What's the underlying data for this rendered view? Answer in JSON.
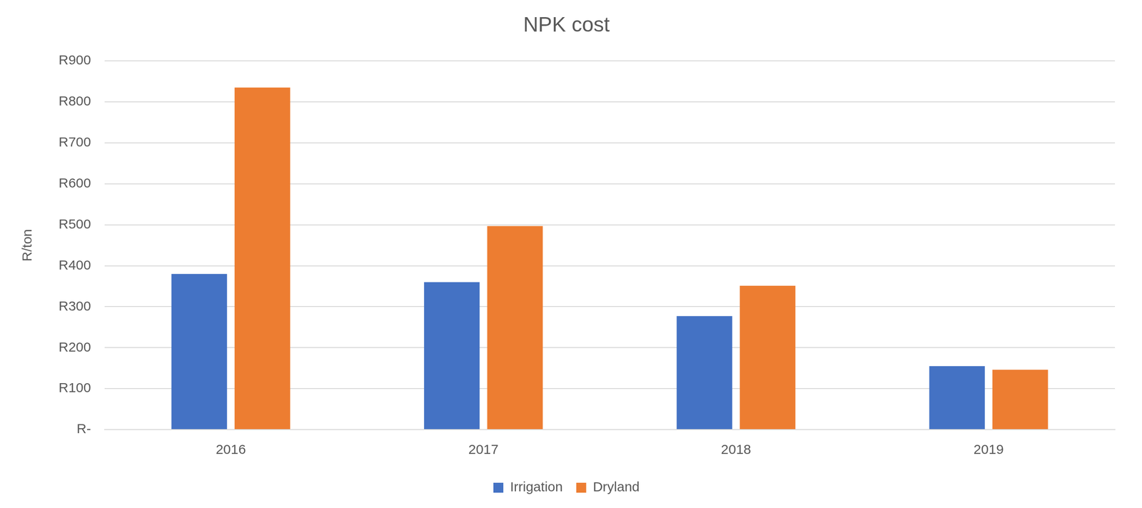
{
  "chart_data": {
    "type": "bar",
    "title": "NPK cost",
    "y_label": "R/ton",
    "categories": [
      "2016",
      "2017",
      "2018",
      "2019"
    ],
    "series": [
      {
        "name": "Irrigation",
        "color": "#4472c4",
        "values": [
          380,
          360,
          277,
          155
        ]
      },
      {
        "name": "Dryland",
        "color": "#ed7d31",
        "values": [
          835,
          497,
          351,
          146
        ]
      }
    ],
    "ylim": [
      0,
      900
    ],
    "yticks": [
      {
        "value": 0,
        "label": "R-"
      },
      {
        "value": 100,
        "label": "R100"
      },
      {
        "value": 200,
        "label": "R200"
      },
      {
        "value": 300,
        "label": "R300"
      },
      {
        "value": 400,
        "label": "R400"
      },
      {
        "value": 500,
        "label": "R500"
      },
      {
        "value": 600,
        "label": "R600"
      },
      {
        "value": 700,
        "label": "R700"
      },
      {
        "value": 800,
        "label": "R800"
      },
      {
        "value": 900,
        "label": "R900"
      }
    ],
    "grid": true,
    "legend": "bottom"
  }
}
